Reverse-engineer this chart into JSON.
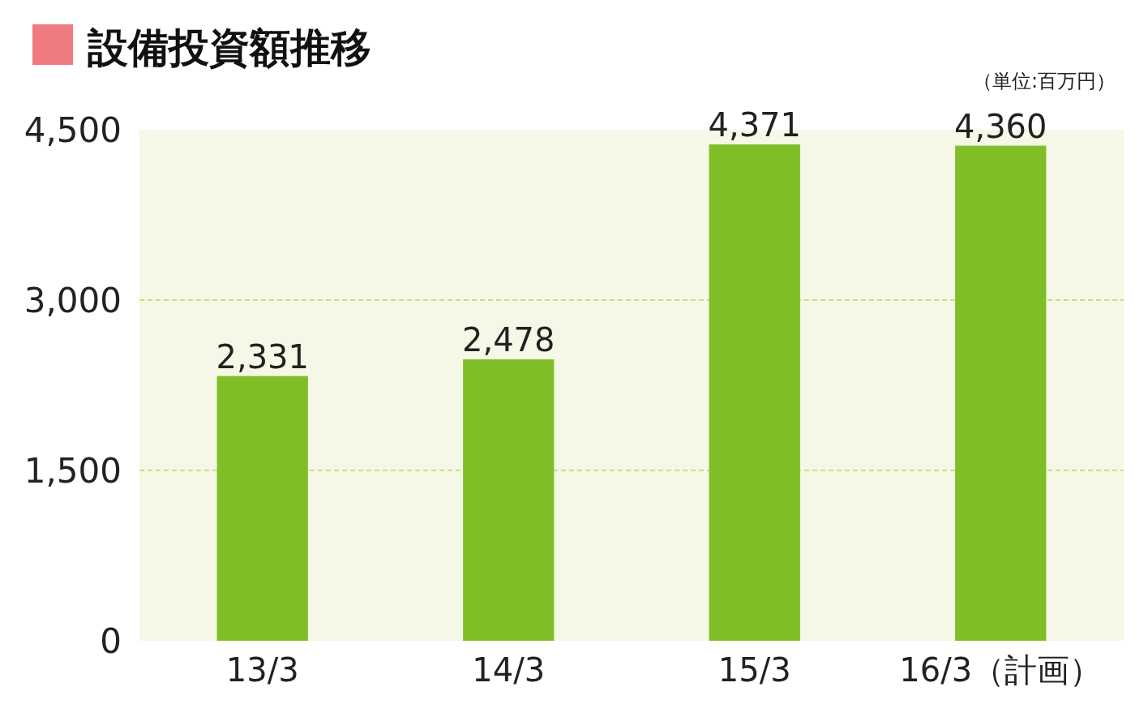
{
  "chart_data": {
    "type": "bar",
    "title": "設備投資額推移",
    "annotations": [
      "（単位:百万円）"
    ],
    "categories": [
      "13/3",
      "14/3",
      "15/3",
      "16/3（計画）"
    ],
    "values": [
      2331,
      2478,
      4371,
      4360
    ],
    "color": "#80be28",
    "ylim": [
      0,
      4500
    ],
    "yticks": [
      0,
      {
        "value": 1500,
        "label": "1,500"
      },
      {
        "value": 3000,
        "label": "3,000"
      },
      {
        "value": 4500,
        "label": "4,500"
      }
    ],
    "grid": "y",
    "value_labels": [
      "2,331",
      "2,478",
      "4,371",
      "4,360"
    ]
  }
}
